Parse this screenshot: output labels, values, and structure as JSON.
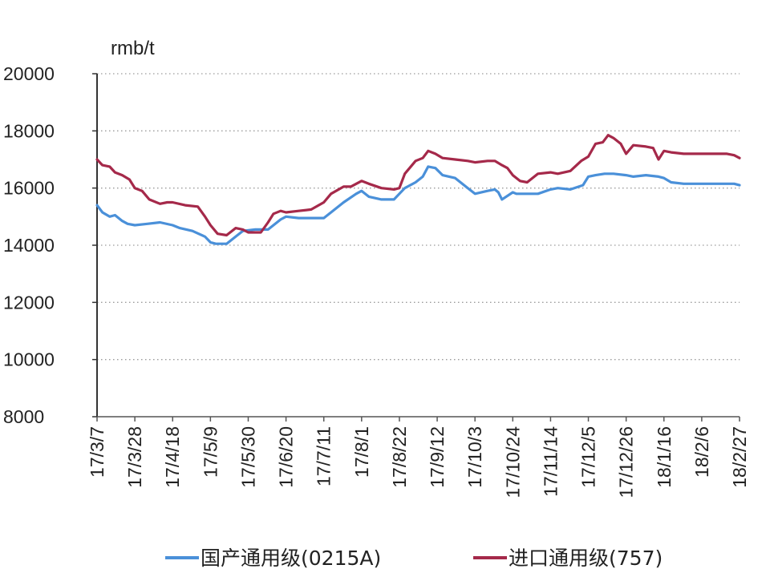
{
  "chart_data": {
    "type": "line",
    "unit_label": "rmb/t",
    "ylim": [
      8000,
      20000
    ],
    "yticks": [
      8000,
      10000,
      12000,
      14000,
      16000,
      18000,
      20000
    ],
    "grid": "horizontal-dotted",
    "legend_position": "bottom",
    "x_tick_labels": [
      "17/3/7",
      "17/3/28",
      "17/4/18",
      "17/5/9",
      "17/5/30",
      "17/6/20",
      "17/7/11",
      "17/8/1",
      "17/8/22",
      "17/9/12",
      "17/10/3",
      "17/10/24",
      "17/11/14",
      "17/12/5",
      "17/12/26",
      "18/1/16",
      "18/2/6",
      "18/2/27"
    ],
    "x_tick_dates": [
      "2017-03-07",
      "2017-03-28",
      "2017-04-18",
      "2017-05-09",
      "2017-05-30",
      "2017-06-20",
      "2017-07-11",
      "2017-08-01",
      "2017-08-22",
      "2017-09-12",
      "2017-10-03",
      "2017-10-24",
      "2017-11-14",
      "2017-12-05",
      "2017-12-26",
      "2018-01-16",
      "2018-02-06",
      "2018-02-27"
    ],
    "series": [
      {
        "name": "国产通用级(0215A)",
        "color": "#4a90d9",
        "x": [
          "2017-03-07",
          "2017-03-10",
          "2017-03-14",
          "2017-03-17",
          "2017-03-21",
          "2017-03-24",
          "2017-03-28",
          "2017-04-04",
          "2017-04-11",
          "2017-04-18",
          "2017-04-22",
          "2017-04-29",
          "2017-05-06",
          "2017-05-09",
          "2017-05-12",
          "2017-05-18",
          "2017-05-23",
          "2017-05-27",
          "2017-06-03",
          "2017-06-10",
          "2017-06-17",
          "2017-06-20",
          "2017-06-27",
          "2017-07-04",
          "2017-07-11",
          "2017-07-15",
          "2017-07-22",
          "2017-07-29",
          "2017-08-01",
          "2017-08-05",
          "2017-08-12",
          "2017-08-19",
          "2017-08-22",
          "2017-08-25",
          "2017-08-31",
          "2017-09-04",
          "2017-09-07",
          "2017-09-11",
          "2017-09-15",
          "2017-09-22",
          "2017-09-29",
          "2017-10-03",
          "2017-10-10",
          "2017-10-14",
          "2017-10-16",
          "2017-10-18",
          "2017-10-24",
          "2017-10-26",
          "2017-10-31",
          "2017-11-07",
          "2017-11-14",
          "2017-11-18",
          "2017-11-25",
          "2017-12-02",
          "2017-12-05",
          "2017-12-09",
          "2017-12-14",
          "2017-12-19",
          "2017-12-26",
          "2017-12-30",
          "2018-01-06",
          "2018-01-13",
          "2018-01-16",
          "2018-01-20",
          "2018-01-27",
          "2018-02-03",
          "2018-02-06",
          "2018-02-13",
          "2018-02-20",
          "2018-02-24",
          "2018-02-27"
        ],
        "values": [
          15400,
          15150,
          15000,
          15050,
          14850,
          14750,
          14700,
          14750,
          14800,
          14700,
          14600,
          14500,
          14300,
          14100,
          14050,
          14050,
          14300,
          14500,
          14550,
          14550,
          14900,
          15000,
          14950,
          14950,
          14950,
          15150,
          15500,
          15800,
          15900,
          15700,
          15600,
          15600,
          15800,
          16000,
          16200,
          16400,
          16750,
          16700,
          16450,
          16350,
          16000,
          15800,
          15900,
          15950,
          15850,
          15600,
          15850,
          15800,
          15800,
          15800,
          15950,
          16000,
          15950,
          16100,
          16400,
          16450,
          16500,
          16500,
          16450,
          16400,
          16450,
          16400,
          16350,
          16200,
          16150,
          16150,
          16150,
          16150,
          16150,
          16150,
          16100
        ]
      },
      {
        "name": "进口通用级(757)",
        "color": "#a5294a",
        "x": [
          "2017-03-07",
          "2017-03-10",
          "2017-03-14",
          "2017-03-17",
          "2017-03-21",
          "2017-03-25",
          "2017-03-28",
          "2017-04-01",
          "2017-04-05",
          "2017-04-11",
          "2017-04-15",
          "2017-04-18",
          "2017-04-25",
          "2017-05-02",
          "2017-05-06",
          "2017-05-09",
          "2017-05-13",
          "2017-05-18",
          "2017-05-23",
          "2017-05-27",
          "2017-05-30",
          "2017-06-06",
          "2017-06-10",
          "2017-06-13",
          "2017-06-17",
          "2017-06-20",
          "2017-06-27",
          "2017-07-04",
          "2017-07-11",
          "2017-07-15",
          "2017-07-22",
          "2017-07-26",
          "2017-08-01",
          "2017-08-05",
          "2017-08-12",
          "2017-08-19",
          "2017-08-22",
          "2017-08-25",
          "2017-08-31",
          "2017-09-04",
          "2017-09-07",
          "2017-09-11",
          "2017-09-15",
          "2017-09-22",
          "2017-09-29",
          "2017-10-03",
          "2017-10-10",
          "2017-10-14",
          "2017-10-18",
          "2017-10-21",
          "2017-10-24",
          "2017-10-28",
          "2017-11-01",
          "2017-11-07",
          "2017-11-14",
          "2017-11-18",
          "2017-11-25",
          "2017-12-01",
          "2017-12-05",
          "2017-12-09",
          "2017-12-13",
          "2017-12-16",
          "2017-12-19",
          "2017-12-23",
          "2017-12-26",
          "2017-12-30",
          "2018-01-06",
          "2018-01-10",
          "2018-01-13",
          "2018-01-16",
          "2018-01-20",
          "2018-01-27",
          "2018-02-03",
          "2018-02-06",
          "2018-02-13",
          "2018-02-20",
          "2018-02-24",
          "2018-02-27"
        ],
        "values": [
          17000,
          16800,
          16750,
          16550,
          16450,
          16300,
          16000,
          15900,
          15600,
          15450,
          15500,
          15500,
          15400,
          15350,
          15000,
          14700,
          14400,
          14350,
          14600,
          14550,
          14450,
          14450,
          14800,
          15100,
          15200,
          15150,
          15200,
          15250,
          15500,
          15800,
          16050,
          16050,
          16250,
          16150,
          16000,
          15950,
          16000,
          16500,
          16950,
          17050,
          17300,
          17200,
          17050,
          17000,
          16950,
          16900,
          16950,
          16950,
          16800,
          16700,
          16450,
          16250,
          16200,
          16500,
          16550,
          16500,
          16600,
          16950,
          17100,
          17550,
          17600,
          17850,
          17750,
          17550,
          17200,
          17500,
          17450,
          17400,
          17000,
          17300,
          17250,
          17200,
          17200,
          17200,
          17200,
          17200,
          17150,
          17050
        ]
      }
    ]
  }
}
